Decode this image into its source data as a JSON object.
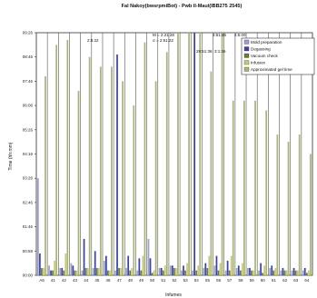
{
  "chart_data": {
    "type": "bar",
    "title": "Fal Nakoy(bwsrpmiBot) - Pwb Il-Maui(IBB275 2545)",
    "xlabel": "Infumes",
    "ylabel": "Time (hh:mm)",
    "categories": [
      "A6",
      "41",
      "42",
      "43",
      "44",
      "45",
      "46",
      "47",
      "48",
      "49",
      "50",
      "51",
      "52",
      "53",
      "54",
      "55",
      "56",
      "57",
      "58",
      "59",
      "60",
      "61",
      "62",
      "63",
      "64"
    ],
    "y_ticks": [
      "00:00",
      "00:58",
      "01:46",
      "02:46",
      "03:26",
      "04:16",
      "05:26",
      "06:06",
      "07:46",
      "08:46",
      "09:26"
    ],
    "ylim": [
      0,
      10
    ],
    "grid": "vertical",
    "legend_position": "top-right",
    "colors": {
      "mold_preparation": "#9aa0cc",
      "degassing": "#3a44a8",
      "vacuum_check": "#6e7a30",
      "infusion": "#c8c96a",
      "approx_gel_time": "#a7b47a"
    },
    "series": [
      {
        "name": "Mold preparation",
        "values": [
          4.0,
          0.4,
          0.3,
          0.5,
          0.2,
          0.3,
          0.6,
          0.2,
          0.3,
          0.2,
          1.5,
          0.3,
          0.4,
          0.2,
          0.2,
          0.3,
          0.4,
          0.2,
          0.3,
          0.3,
          0.2,
          0.3,
          0.2,
          0.2,
          0.2
        ]
      },
      {
        "name": "Degassing",
        "values": [
          0.9,
          0.2,
          0.3,
          0.4,
          1.5,
          1.0,
          0.8,
          9.1,
          0.8,
          0.7,
          0.7,
          0.3,
          0.4,
          0.4,
          10.0,
          0.5,
          0.8,
          0.6,
          0.4,
          0.3,
          0.5,
          0.4,
          0.3,
          0.3,
          0.3
        ]
      },
      {
        "name": "Vacuum check",
        "values": [
          0.3,
          0.2,
          0.2,
          0.2,
          0.3,
          0.3,
          0.2,
          0.3,
          0.2,
          0.2,
          0.1,
          0.2,
          0.3,
          0.2,
          0.2,
          0.3,
          0.2,
          0.2,
          0.2,
          0.2,
          0.1,
          0.2,
          0.2,
          0.2,
          0.1
        ]
      },
      {
        "name": "Infusion",
        "values": [
          0.3,
          0.6,
          0.9,
          0.2,
          0.3,
          0.3,
          0.2,
          0.3,
          0.3,
          0.8,
          0.2,
          0.4,
          0.3,
          0.5,
          0.4,
          0.8,
          0.5,
          0.8,
          0.5,
          0.2,
          0.4,
          0.3,
          0.2,
          0.2,
          0.2
        ]
      },
      {
        "name": "Approximated gel time",
        "values": [
          8.2,
          9.5,
          9.7,
          7.6,
          9.0,
          8.6,
          8.6,
          8.0,
          7.0,
          9.6,
          8.0,
          9.2,
          10.0,
          10.0,
          10.0,
          8.4,
          10.0,
          7.2,
          7.2,
          7.2,
          6.8,
          5.8,
          5.5,
          5.8,
          5.0
        ]
      }
    ],
    "annotations": [
      "2:5:22",
      "M = 2:21:28",
      "σ = 2:51:22",
      "3:51:36",
      "28:51:36",
      "3:1:36",
      "2:5:00"
    ]
  }
}
